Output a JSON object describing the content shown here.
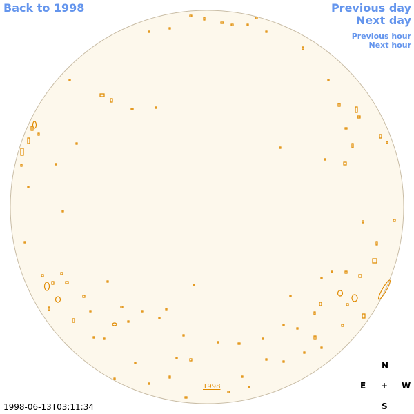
{
  "nav": {
    "back": "Back to 1998",
    "previous_day": "Previous day",
    "next_day": "Next day",
    "previous_hour": "Previous hour",
    "next_hour": "Next hour"
  },
  "disk": {
    "year_link": "1998"
  },
  "compass": {
    "north": "N",
    "east": "E",
    "center": "+",
    "west": "W",
    "south": "S"
  },
  "timestamp": "1998-06-13T03:11:34"
}
